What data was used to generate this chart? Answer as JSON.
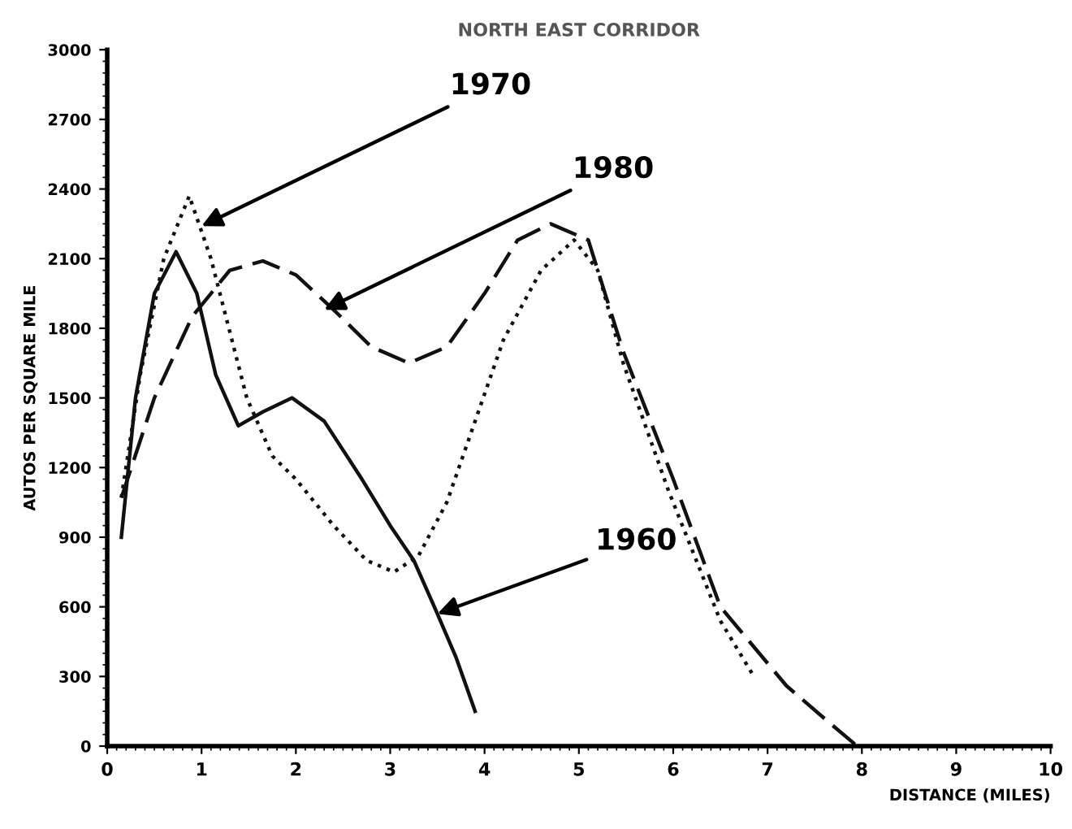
{
  "chart_data": {
    "type": "line",
    "title": "NORTH EAST CORRIDOR",
    "xlabel": "DISTANCE (MILES)",
    "ylabel": "AUTOS PER SQUARE MILE",
    "xlim": [
      0,
      10
    ],
    "xticks": [
      0,
      1,
      2,
      3,
      4,
      5,
      6,
      7,
      8,
      9,
      10
    ],
    "ylim": [
      0,
      3000
    ],
    "yticks": [
      0,
      300,
      600,
      900,
      1200,
      1500,
      1800,
      2100,
      2400,
      2700,
      3000
    ],
    "grid": false,
    "legend": false,
    "marker": "none",
    "series": [
      {
        "color": "#111111",
        "line_style": "solid",
        "x": [
          0.15,
          0.3,
          0.5,
          0.73,
          0.95,
          1.15,
          1.39,
          1.65,
          1.96,
          2.3,
          2.7,
          3.0,
          3.25,
          3.5,
          3.7,
          3.9
        ],
        "values": [
          900,
          1500,
          1950,
          2130,
          1950,
          1600,
          1380,
          1440,
          1500,
          1400,
          1150,
          950,
          800,
          570,
          380,
          150
        ]
      },
      {
        "color": "#111111",
        "line_style": "dotted",
        "x": [
          0.15,
          0.35,
          0.6,
          0.87,
          1.1,
          1.48,
          1.75,
          2.0,
          2.4,
          2.75,
          3.04,
          3.3,
          3.6,
          3.9,
          4.2,
          4.6,
          4.95,
          5.2,
          5.47,
          5.95,
          6.5,
          6.84
        ],
        "values": [
          1070,
          1600,
          2100,
          2370,
          2100,
          1500,
          1250,
          1150,
          950,
          800,
          750,
          820,
          1050,
          1400,
          1750,
          2050,
          2180,
          2050,
          1650,
          1100,
          540,
          310
        ]
      },
      {
        "color": "#111111",
        "line_style": "dashed",
        "x": [
          0.15,
          0.5,
          0.9,
          1.3,
          1.65,
          2.0,
          2.4,
          2.8,
          3.2,
          3.6,
          4.0,
          4.35,
          4.7,
          5.1,
          5.47,
          6.0,
          6.5,
          7.2,
          7.6,
          7.95
        ],
        "values": [
          1070,
          1500,
          1850,
          2050,
          2090,
          2030,
          1880,
          1720,
          1650,
          1720,
          1950,
          2180,
          2250,
          2180,
          1700,
          1150,
          600,
          260,
          120,
          0
        ]
      }
    ],
    "annotations": [
      {
        "text": "1970",
        "x": 1.0,
        "y": 2240
      },
      {
        "text": "1980",
        "x": 2.3,
        "y": 1880
      },
      {
        "text": "1960",
        "x": 3.5,
        "y": 570
      }
    ]
  }
}
